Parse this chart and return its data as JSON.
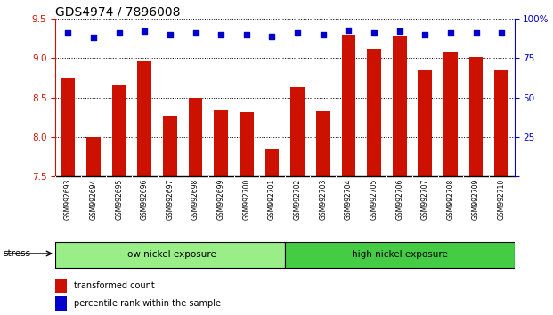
{
  "title": "GDS4974 / 7896008",
  "samples": [
    "GSM992693",
    "GSM992694",
    "GSM992695",
    "GSM992696",
    "GSM992697",
    "GSM992698",
    "GSM992699",
    "GSM992700",
    "GSM992701",
    "GSM992702",
    "GSM992703",
    "GSM992704",
    "GSM992705",
    "GSM992706",
    "GSM992707",
    "GSM992708",
    "GSM992709",
    "GSM992710"
  ],
  "transformed_count": [
    8.75,
    8.0,
    8.65,
    8.97,
    8.27,
    8.5,
    8.34,
    8.32,
    7.84,
    8.63,
    8.33,
    9.3,
    9.12,
    9.28,
    8.85,
    9.07,
    9.02,
    8.85
  ],
  "percentile_rank": [
    91,
    88,
    91,
    92,
    90,
    91,
    90,
    90,
    89,
    91,
    90,
    93,
    91,
    92,
    90,
    91,
    91,
    91
  ],
  "ylim_left": [
    7.5,
    9.5
  ],
  "ylim_right": [
    0,
    100
  ],
  "yticks_left": [
    7.5,
    8.0,
    8.5,
    9.0,
    9.5
  ],
  "yticks_right": [
    0,
    25,
    50,
    75,
    100
  ],
  "bar_color": "#cc1100",
  "dot_color": "#0000cc",
  "group1_label": "low nickel exposure",
  "group2_label": "high nickel exposure",
  "group1_count": 9,
  "group2_count": 9,
  "group1_color": "#99ee88",
  "group2_color": "#44cc44",
  "stress_label": "stress",
  "legend_bar": "transformed count",
  "legend_dot": "percentile rank within the sample",
  "background_color": "#ffffff",
  "right_axis_color": "#0000cc",
  "left_axis_color": "#cc1100",
  "title_fontsize": 10,
  "tick_fontsize": 7.5
}
